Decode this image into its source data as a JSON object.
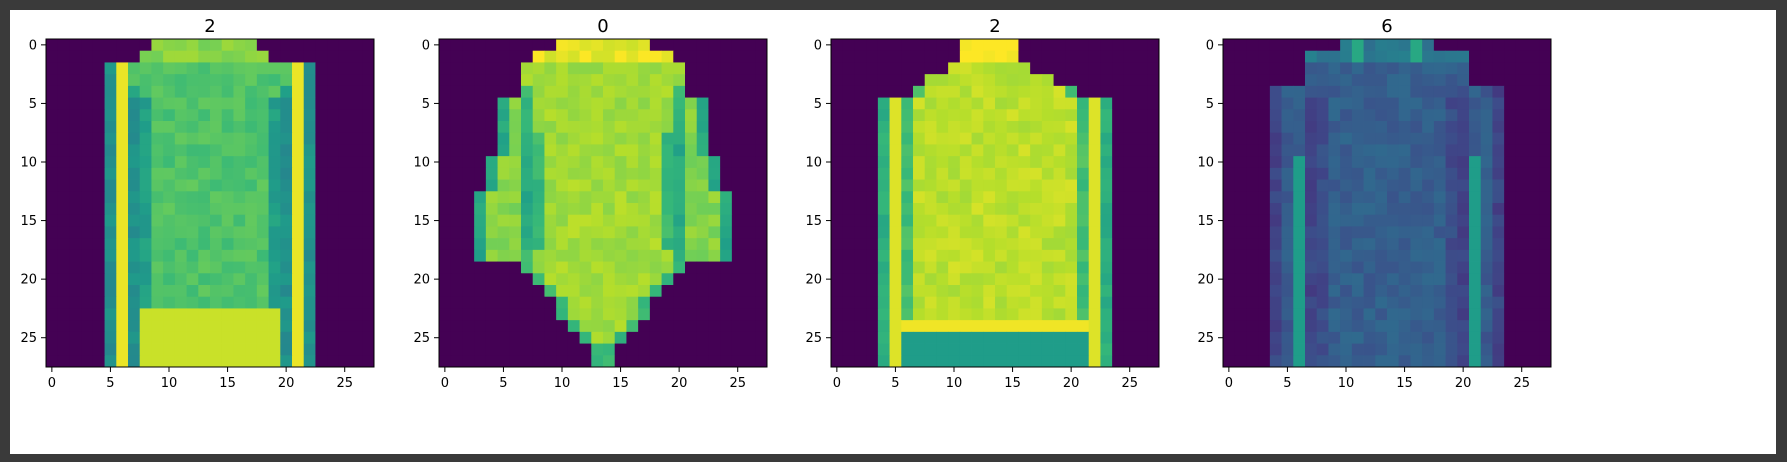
{
  "figure": {
    "background": "#ffffff",
    "frame_color": "#3a3a3a"
  },
  "colormap": {
    "name": "viridis",
    "stops": [
      "#440154",
      "#482878",
      "#3e4989",
      "#31688e",
      "#26828e",
      "#1f9e89",
      "#35b779",
      "#6ece58",
      "#b5de2b",
      "#fde725"
    ]
  },
  "chart_data": [
    {
      "type": "heatmap",
      "title": "2",
      "garment": "sweater",
      "intensity": 0.72,
      "xticks": [
        "0",
        "5",
        "10",
        "15",
        "20",
        "25"
      ],
      "yticks": [
        "0",
        "5",
        "10",
        "15",
        "20",
        "25"
      ],
      "xlim": [
        -0.5,
        27.5
      ],
      "ylim": [
        27.5,
        -0.5
      ],
      "grid": false
    },
    {
      "type": "heatmap",
      "title": "0",
      "garment": "dress-shirt",
      "intensity": 0.86,
      "xticks": [
        "0",
        "5",
        "10",
        "15",
        "20",
        "25"
      ],
      "yticks": [
        "0",
        "5",
        "10",
        "15",
        "20",
        "25"
      ],
      "xlim": [
        -0.5,
        27.5
      ],
      "ylim": [
        27.5,
        -0.5
      ],
      "grid": false
    },
    {
      "type": "heatmap",
      "title": "2",
      "garment": "pullover",
      "intensity": 0.9,
      "xticks": [
        "0",
        "5",
        "10",
        "15",
        "20",
        "25"
      ],
      "yticks": [
        "0",
        "5",
        "10",
        "15",
        "20",
        "25"
      ],
      "xlim": [
        -0.5,
        27.5
      ],
      "ylim": [
        27.5,
        -0.5
      ],
      "grid": false
    },
    {
      "type": "heatmap",
      "title": "6",
      "garment": "shirt",
      "intensity": 0.3,
      "xticks": [
        "0",
        "5",
        "10",
        "15",
        "20",
        "25"
      ],
      "yticks": [
        "0",
        "5",
        "10",
        "15",
        "20",
        "25"
      ],
      "xlim": [
        -0.5,
        27.5
      ],
      "ylim": [
        27.5,
        -0.5
      ],
      "grid": false
    }
  ]
}
